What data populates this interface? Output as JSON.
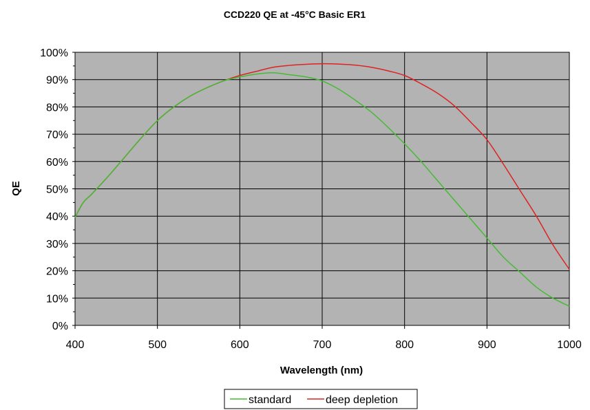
{
  "chart_data": {
    "type": "line",
    "title": "CCD220 QE  at -45°C  Basic ER1",
    "xlabel": "Wavelength (nm)",
    "ylabel": "QE",
    "xlim": [
      400,
      1000
    ],
    "ylim": [
      0,
      100
    ],
    "xticks": [
      400,
      500,
      600,
      700,
      800,
      900,
      1000
    ],
    "yticks": [
      0,
      10,
      20,
      30,
      40,
      50,
      60,
      70,
      80,
      90,
      100
    ],
    "y_tick_format": "percent",
    "grid": true,
    "plot_background": "#b3b3b3",
    "legend_position": "bottom-center",
    "series": [
      {
        "name": "standard",
        "color": "#44bb33",
        "x": [
          400,
          410,
          420,
          440,
          460,
          480,
          500,
          520,
          540,
          560,
          580,
          600,
          620,
          640,
          660,
          680,
          700,
          720,
          740,
          760,
          780,
          800,
          820,
          840,
          860,
          880,
          900,
          920,
          940,
          960,
          980,
          1000
        ],
        "y": [
          39.5,
          45,
          48,
          54.5,
          61.5,
          68.5,
          75,
          80,
          84,
          87,
          89.5,
          91,
          92,
          92.5,
          91.8,
          91,
          89.5,
          86.5,
          82.5,
          78,
          72.5,
          66.5,
          60,
          53,
          46,
          39,
          32,
          25,
          19.5,
          14,
          10,
          7
        ]
      },
      {
        "name": "deep depletion",
        "color": "#dd2222",
        "x": [
          400,
          410,
          420,
          440,
          460,
          480,
          500,
          520,
          540,
          560,
          580,
          600,
          620,
          640,
          660,
          680,
          700,
          720,
          740,
          760,
          780,
          800,
          820,
          840,
          860,
          880,
          900,
          920,
          940,
          960,
          980,
          1000
        ],
        "y": [
          39.5,
          45,
          48,
          54.5,
          61.5,
          68.5,
          75,
          80,
          84,
          87,
          89.5,
          91.5,
          93,
          94.5,
          95.2,
          95.6,
          95.8,
          95.7,
          95.3,
          94.5,
          93.2,
          91.5,
          88.5,
          85,
          80.5,
          74.5,
          68,
          59,
          49.5,
          40,
          29.5,
          20.5
        ]
      }
    ]
  }
}
